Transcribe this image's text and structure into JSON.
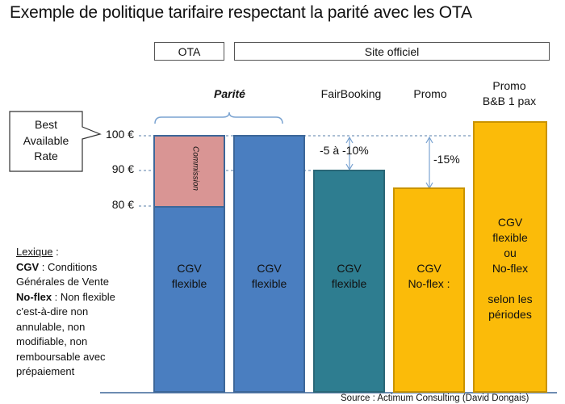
{
  "title": "Exemple de politique tarifaire respectant la parité avec les OTA",
  "header": {
    "ota": "OTA",
    "site": "Site officiel"
  },
  "callout": {
    "line1": "Best",
    "line2": "Available",
    "line3": "Rate"
  },
  "axis": {
    "t100": "100 €",
    "t90": "90 €",
    "t80": "80 €"
  },
  "labels": {
    "parite": "Parité",
    "fairbooking": "FairBooking",
    "promo": "Promo",
    "promo_bb_1": "Promo",
    "promo_bb_2": "B&B 1 pax"
  },
  "annotations": {
    "commission": "Commission",
    "minus_5_10": "-5 à -10%",
    "minus_15": "-15%"
  },
  "bars": {
    "b1": {
      "line1": "CGV",
      "line2": "flexible"
    },
    "b2": {
      "line1": "CGV",
      "line2": "flexible"
    },
    "b3": {
      "line1": "CGV",
      "line2": "flexible"
    },
    "b4": {
      "line1": "CGV",
      "line2": "No-flex :"
    },
    "b5": {
      "line1": "CGV",
      "line2": "flexible",
      "line3": "ou",
      "line4": "No-flex",
      "line5": "selon les",
      "line6": "périodes"
    }
  },
  "lexique": {
    "heading": "Lexique",
    "heading_suffix": " :",
    "cgv_term": "CGV",
    "cgv_def_1": " : Conditions",
    "cgv_def_2": "Générales de Vente",
    "noflex_term": "No-flex",
    "noflex_def_1": " : Non flexible",
    "noflex_def_2": "c'est-à-dire non",
    "noflex_def_3": "annulable, non",
    "noflex_def_4": "modifiable, non",
    "noflex_def_5": "remboursable avec",
    "noflex_def_6": "prépaiement"
  },
  "source": "Source : Actimum Consulting (David Dongais)",
  "chart_data": {
    "type": "bar",
    "categories": [
      "OTA",
      "Parité (site officiel)",
      "FairBooking",
      "Promo",
      "Promo B&B 1 pax"
    ],
    "values": [
      100,
      100,
      90,
      85,
      103
    ],
    "ylabel": "",
    "ticks": [
      80,
      90,
      100
    ],
    "annotations": [
      {
        "text": "Commission",
        "from": 80,
        "to": 100
      },
      {
        "text": "-5 à -10%",
        "from": 90,
        "to": 100
      },
      {
        "text": "-15%",
        "from": 85,
        "to": 100
      }
    ],
    "colors": {
      "ota_commission": "#d99594",
      "blue": "#4a7ec0",
      "teal": "#2e7d90",
      "orange": "#fbbb09"
    }
  }
}
